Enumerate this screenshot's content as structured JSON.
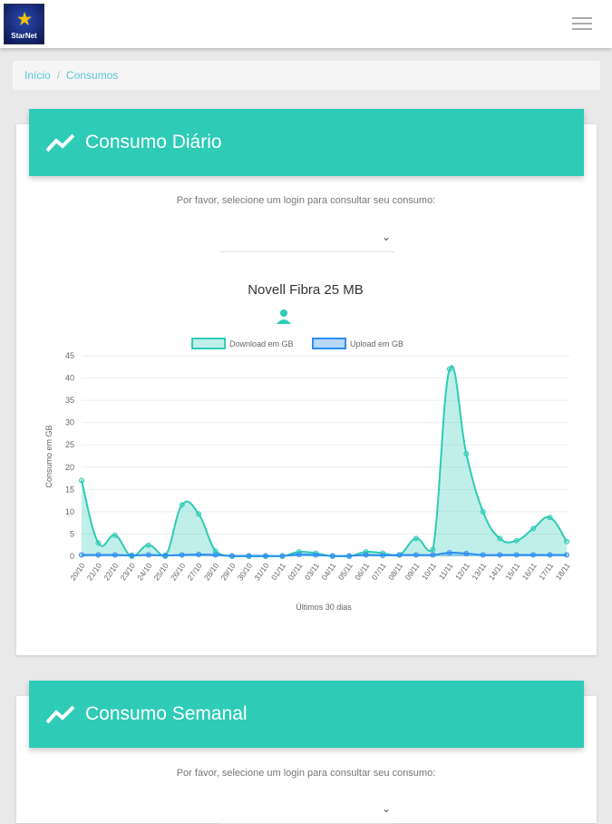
{
  "header": {
    "logo_text": "StarNet"
  },
  "breadcrumb": {
    "home": "Início",
    "sep": "/",
    "current": "Consumos"
  },
  "daily": {
    "title": "Consumo Diário",
    "prompt": "Por favor, selecione um login para consultar seu consumo:",
    "plan": "Novell Fibra 25 MB"
  },
  "weekly": {
    "title": "Consumo Semanal",
    "prompt": "Por favor, selecione um login para consultar seu consumo:"
  },
  "colors": {
    "accent": "#2ecbb6",
    "upload": "#2f8ef0"
  },
  "chart_data": {
    "type": "line",
    "title": "Novell Fibra 25 MB",
    "xlabel": "Últimos 30 dias",
    "ylabel": "Consumo em GB",
    "ylim": [
      0,
      45
    ],
    "yticks": [
      0,
      5,
      10,
      15,
      20,
      25,
      30,
      35,
      40,
      45
    ],
    "legend_position": "top",
    "categories": [
      "20/10",
      "21/10",
      "22/10",
      "23/10",
      "24/10",
      "25/10",
      "26/10",
      "27/10",
      "28/10",
      "29/10",
      "30/10",
      "31/10",
      "01/11",
      "02/11",
      "03/11",
      "04/11",
      "05/11",
      "06/11",
      "07/11",
      "08/11",
      "09/11",
      "10/11",
      "11/11",
      "12/11",
      "13/11",
      "14/11",
      "15/11",
      "16/11",
      "17/11",
      "18/11"
    ],
    "series": [
      {
        "name": "Download em GB",
        "values": [
          17,
          3,
          4.7,
          0,
          2.5,
          0,
          11.5,
          9.5,
          1.2,
          0,
          0,
          0,
          0,
          1,
          0.7,
          0,
          0,
          1,
          0.7,
          0.3,
          4,
          1.5,
          42,
          23,
          10,
          4,
          3.5,
          6.2,
          8.7,
          3.3
        ]
      },
      {
        "name": "Upload em GB",
        "values": [
          0.3,
          0.3,
          0.3,
          0.2,
          0.3,
          0.2,
          0.3,
          0.4,
          0.3,
          0.1,
          0.1,
          0.1,
          0.1,
          0.4,
          0.3,
          0.1,
          0.1,
          0.3,
          0.2,
          0.3,
          0.3,
          0.3,
          0.8,
          0.6,
          0.3,
          0.3,
          0.3,
          0.3,
          0.3,
          0.3
        ]
      }
    ]
  }
}
